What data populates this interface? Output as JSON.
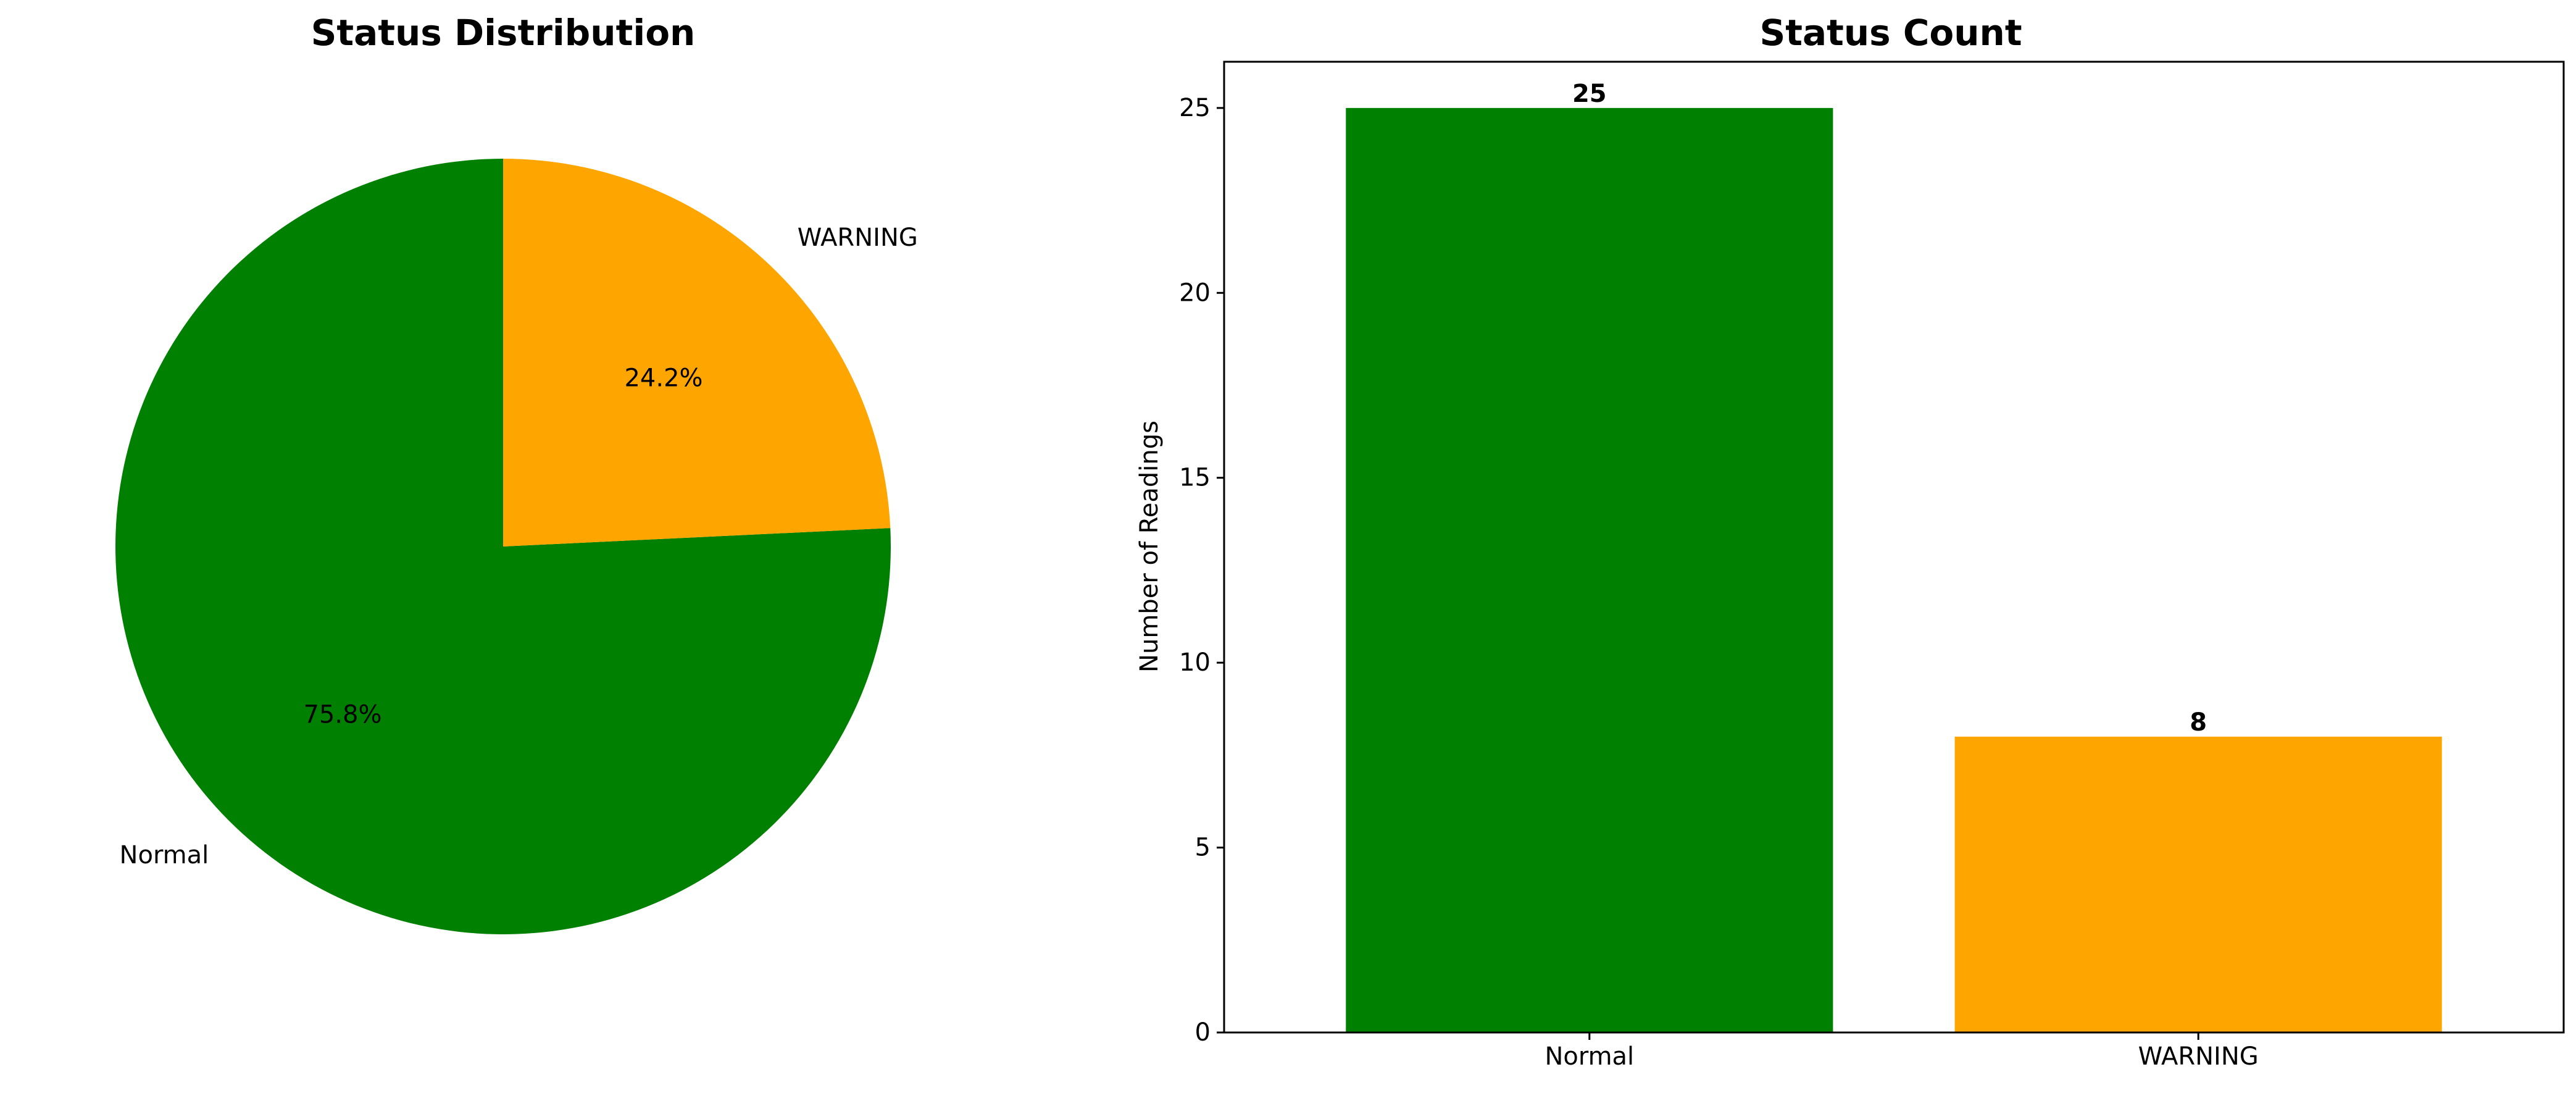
{
  "chart_data": [
    {
      "type": "pie",
      "title": "Status Distribution",
      "labels": [
        "Normal",
        "WARNING"
      ],
      "values": [
        25,
        8
      ],
      "percent_labels": [
        "75.8%",
        "24.2%"
      ],
      "colors": [
        "#008000",
        "#FFA500"
      ],
      "start_angle_deg": 90,
      "direction": "counterclockwise"
    },
    {
      "type": "bar",
      "title": "Status Count",
      "categories": [
        "Normal",
        "WARNING"
      ],
      "values": [
        25,
        8
      ],
      "value_labels": [
        "25",
        "8"
      ],
      "colors": [
        "#008000",
        "#FFA500"
      ],
      "xlabel": "",
      "ylabel": "Number of Readings",
      "ylim": [
        0,
        26.25
      ],
      "yticks": [
        0,
        5,
        10,
        15,
        20,
        25
      ],
      "grid": false
    }
  ]
}
